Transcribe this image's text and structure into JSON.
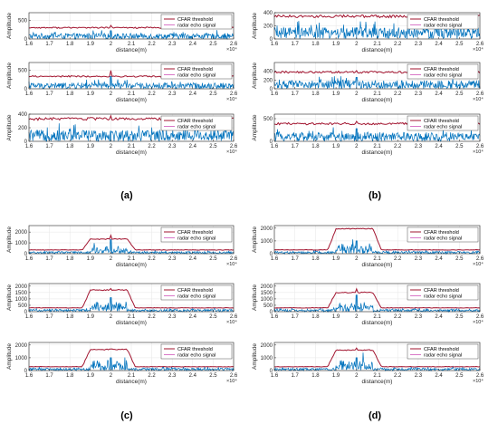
{
  "colors": {
    "threshold": "#a2142f",
    "echo": "#0072bd",
    "axis": "#262626",
    "grid": "#e6e6e6",
    "legend_echo_line": "#d978c8"
  },
  "figure": {
    "panels": [
      {
        "label": "(a)"
      },
      {
        "label": "(b)"
      },
      {
        "label": "(c)"
      },
      {
        "label": "(d)"
      }
    ]
  },
  "chart_data": [
    {
      "panel": "(a)",
      "row": 1,
      "type": "line",
      "xlabel": "distance(m)",
      "ylabel": "Amplitude",
      "x_exponent": "×10⁴",
      "xlim": [
        1.6,
        2.6
      ],
      "ylim": [
        0,
        700
      ],
      "xticks": [
        "1.6",
        "1.7",
        "1.8",
        "1.9",
        "2",
        "2.1",
        "2.2",
        "2.3",
        "2.4",
        "2.5",
        "2.6"
      ],
      "yticks": [
        "0",
        "500"
      ],
      "series": [
        {
          "name": "CFAR threshold",
          "kind": "threshold",
          "level": 300,
          "plateau": 0,
          "spike": 60
        },
        {
          "name": "radar echo signal",
          "kind": "echo",
          "noise": 150,
          "target": 0,
          "spike": 220
        }
      ]
    },
    {
      "panel": "(a)",
      "row": 2,
      "type": "line",
      "xlabel": "distance(m)",
      "ylabel": "Amplitude",
      "x_exponent": "×10⁴",
      "xlim": [
        1.6,
        2.6
      ],
      "ylim": [
        0,
        700
      ],
      "xticks": [
        "1.6",
        "1.7",
        "1.8",
        "1.9",
        "2",
        "2.1",
        "2.2",
        "2.3",
        "2.4",
        "2.5",
        "2.6"
      ],
      "yticks": [
        "0",
        "500"
      ],
      "series": [
        {
          "name": "CFAR threshold",
          "kind": "threshold",
          "level": 330,
          "plateau": 0,
          "spike": 150
        },
        {
          "name": "radar echo signal",
          "kind": "echo",
          "noise": 160,
          "target": 0,
          "spike": 330
        }
      ]
    },
    {
      "panel": "(a)",
      "row": 3,
      "type": "line",
      "xlabel": "distance(m)",
      "ylabel": "Amplitude",
      "x_exponent": "×10⁴",
      "xlim": [
        1.6,
        2.6
      ],
      "ylim": [
        0,
        400
      ],
      "xticks": [
        "1.6",
        "1.7",
        "1.8",
        "1.9",
        "2",
        "2.1",
        "2.2",
        "2.3",
        "2.4",
        "2.5",
        "2.6"
      ],
      "yticks": [
        "0",
        "200",
        "400"
      ],
      "series": [
        {
          "name": "CFAR threshold",
          "kind": "threshold",
          "level": 330,
          "plateau": 0,
          "spike": 30
        },
        {
          "name": "radar echo signal",
          "kind": "echo",
          "noise": 170,
          "target": 0,
          "spike": 150
        }
      ]
    },
    {
      "panel": "(b)",
      "row": 1,
      "type": "line",
      "xlabel": "distance(m)",
      "ylabel": "Amplitude",
      "x_exponent": "×10⁴",
      "xlim": [
        1.6,
        2.6
      ],
      "ylim": [
        0,
        400
      ],
      "xticks": [
        "1.6",
        "1.7",
        "1.8",
        "1.9",
        "2",
        "2.1",
        "2.2",
        "2.3",
        "2.4",
        "2.5",
        "2.6"
      ],
      "yticks": [
        "0",
        "200",
        "400"
      ],
      "series": [
        {
          "name": "CFAR threshold",
          "kind": "threshold",
          "level": 345,
          "plateau": 0,
          "spike": 25
        },
        {
          "name": "radar echo signal",
          "kind": "echo",
          "noise": 175,
          "target": 0,
          "spike": 170
        }
      ]
    },
    {
      "panel": "(b)",
      "row": 2,
      "type": "line",
      "xlabel": "distance(m)",
      "ylabel": "Amplitude",
      "x_exponent": "×10⁴",
      "xlim": [
        1.6,
        2.6
      ],
      "ylim": [
        0,
        600
      ],
      "xticks": [
        "1.6",
        "1.7",
        "1.8",
        "1.9",
        "2",
        "2.1",
        "2.2",
        "2.3",
        "2.4",
        "2.5",
        "2.6"
      ],
      "yticks": [
        "0",
        "200",
        "400"
      ],
      "series": [
        {
          "name": "CFAR threshold",
          "kind": "threshold",
          "level": 380,
          "plateau": 0,
          "spike": 40
        },
        {
          "name": "radar echo signal",
          "kind": "echo",
          "noise": 190,
          "target": 0,
          "spike": 260
        }
      ]
    },
    {
      "panel": "(b)",
      "row": 3,
      "type": "line",
      "xlabel": "distance(m)",
      "ylabel": "Amplitude",
      "x_exponent": "×10⁴",
      "xlim": [
        1.6,
        2.6
      ],
      "ylim": [
        0,
        600
      ],
      "xticks": [
        "1.6",
        "1.7",
        "1.8",
        "1.9",
        "2",
        "2.1",
        "2.2",
        "2.3",
        "2.4",
        "2.5",
        "2.6"
      ],
      "yticks": [
        "0",
        "500"
      ],
      "series": [
        {
          "name": "CFAR threshold",
          "kind": "threshold",
          "level": 390,
          "plateau": 0,
          "spike": 50
        },
        {
          "name": "radar echo signal",
          "kind": "echo",
          "noise": 200,
          "target": 0,
          "spike": 280
        }
      ]
    },
    {
      "panel": "(c)",
      "row": 1,
      "type": "line",
      "xlabel": "distance(m)",
      "ylabel": "Amplitude",
      "x_exponent": "×10⁴",
      "xlim": [
        1.6,
        2.6
      ],
      "ylim": [
        0,
        2600
      ],
      "xticks": [
        "1.6",
        "1.7",
        "1.8",
        "1.9",
        "2",
        "2.1",
        "2.2",
        "2.3",
        "2.4",
        "2.5",
        "2.6"
      ],
      "yticks": [
        "0",
        "1000",
        "2000"
      ],
      "series": [
        {
          "name": "CFAR threshold",
          "kind": "threshold",
          "level": 350,
          "plateau": 1350,
          "spike": 350
        },
        {
          "name": "radar echo signal",
          "kind": "echo",
          "noise": 200,
          "target": 700,
          "spike": 1300
        }
      ]
    },
    {
      "panel": "(c)",
      "row": 2,
      "type": "line",
      "xlabel": "distance(m)",
      "ylabel": "Amplitude",
      "x_exponent": "×10⁴",
      "xlim": [
        1.6,
        2.6
      ],
      "ylim": [
        0,
        2200
      ],
      "xticks": [
        "1.6",
        "1.7",
        "1.8",
        "1.9",
        "2",
        "2.1",
        "2.2",
        "2.3",
        "2.4",
        "2.5",
        "2.6"
      ],
      "yticks": [
        "0",
        "500",
        "1000",
        "1500",
        "2000"
      ],
      "series": [
        {
          "name": "CFAR threshold",
          "kind": "threshold",
          "level": 300,
          "plateau": 1700,
          "spike": 100
        },
        {
          "name": "radar echo signal",
          "kind": "echo",
          "noise": 200,
          "target": 900,
          "spike": 1100
        }
      ]
    },
    {
      "panel": "(c)",
      "row": 3,
      "type": "line",
      "xlabel": "distance(m)",
      "ylabel": "Amplitude",
      "x_exponent": "×10⁴",
      "xlim": [
        1.6,
        2.6
      ],
      "ylim": [
        0,
        2200
      ],
      "xticks": [
        "1.6",
        "1.7",
        "1.8",
        "1.9",
        "2",
        "2.1",
        "2.2",
        "2.3",
        "2.4",
        "2.5",
        "2.6"
      ],
      "yticks": [
        "0",
        "1000",
        "2000"
      ],
      "series": [
        {
          "name": "CFAR threshold",
          "kind": "threshold",
          "level": 300,
          "plateau": 1650,
          "spike": 0
        },
        {
          "name": "radar echo signal",
          "kind": "echo",
          "noise": 200,
          "target": 900,
          "spike": 1000
        }
      ]
    },
    {
      "panel": "(d)",
      "row": 1,
      "type": "line",
      "xlabel": "distance(m)",
      "ylabel": "Amplitude",
      "x_exponent": "×10⁴",
      "xlim": [
        1.6,
        2.6
      ],
      "ylim": [
        0,
        2200
      ],
      "xticks": [
        "1.6",
        "1.7",
        "1.8",
        "1.9",
        "2",
        "2.1",
        "2.2",
        "2.3",
        "2.4",
        "2.5",
        "2.6"
      ],
      "yticks": [
        "0",
        "1000",
        "2000"
      ],
      "series": [
        {
          "name": "CFAR threshold",
          "kind": "threshold",
          "level": 300,
          "plateau": 1950,
          "spike": 0
        },
        {
          "name": "radar echo signal",
          "kind": "echo",
          "noise": 200,
          "target": 800,
          "spike": 1000
        }
      ]
    },
    {
      "panel": "(d)",
      "row": 2,
      "type": "line",
      "xlabel": "distance(m)",
      "ylabel": "Amplitude",
      "x_exponent": "×10⁴",
      "xlim": [
        1.6,
        2.6
      ],
      "ylim": [
        0,
        2200
      ],
      "xticks": [
        "1.6",
        "1.7",
        "1.8",
        "1.9",
        "2",
        "2.1",
        "2.2",
        "2.3",
        "2.4",
        "2.5",
        "2.6"
      ],
      "yticks": [
        "0",
        "500",
        "1000",
        "1500",
        "2000"
      ],
      "series": [
        {
          "name": "CFAR threshold",
          "kind": "threshold",
          "level": 300,
          "plateau": 1500,
          "spike": 300
        },
        {
          "name": "radar echo signal",
          "kind": "echo",
          "noise": 200,
          "target": 800,
          "spike": 1300
        }
      ]
    },
    {
      "panel": "(d)",
      "row": 3,
      "type": "line",
      "xlabel": "distance(m)",
      "ylabel": "Amplitude",
      "x_exponent": "×10⁴",
      "xlim": [
        1.6,
        2.6
      ],
      "ylim": [
        0,
        2200
      ],
      "xticks": [
        "1.6",
        "1.7",
        "1.8",
        "1.9",
        "2",
        "2.1",
        "2.2",
        "2.3",
        "2.4",
        "2.5",
        "2.6"
      ],
      "yticks": [
        "0",
        "1000",
        "2000"
      ],
      "series": [
        {
          "name": "CFAR threshold",
          "kind": "threshold",
          "level": 300,
          "plateau": 1600,
          "spike": 150
        },
        {
          "name": "radar echo signal",
          "kind": "echo",
          "noise": 200,
          "target": 900,
          "spike": 1000
        }
      ]
    }
  ]
}
